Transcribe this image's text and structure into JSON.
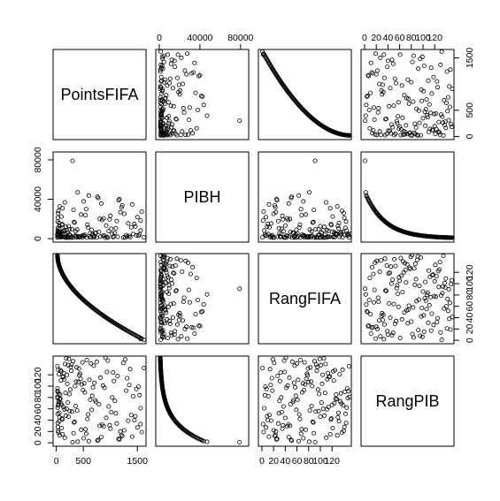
{
  "chart_data": {
    "type": "scatter",
    "variables": [
      {
        "name": "PointsFIFA",
        "lim": [
          -60,
          1660
        ],
        "ticks": [
          0,
          500,
          1500
        ],
        "tick_labels": [
          "0",
          "500",
          "1500"
        ]
      },
      {
        "name": "PIBH",
        "lim": [
          -3500,
          88000
        ],
        "ticks": [
          0,
          40000,
          80000
        ],
        "tick_labels": [
          "0",
          "40000",
          "80000"
        ]
      },
      {
        "name": "RangFIFA",
        "lim": [
          -6,
          153
        ],
        "ticks": [
          0,
          20,
          40,
          60,
          80,
          100,
          120
        ],
        "tick_labels": [
          "0",
          "20",
          "40",
          "60",
          "80",
          "100",
          "120"
        ]
      },
      {
        "name": "RangPIB",
        "lim": [
          -6,
          153
        ],
        "ticks": [
          0,
          20,
          40,
          60,
          80,
          100,
          120
        ],
        "tick_labels": [
          "0",
          "20",
          "40",
          "60",
          "80",
          "100",
          "120"
        ]
      }
    ]
  }
}
